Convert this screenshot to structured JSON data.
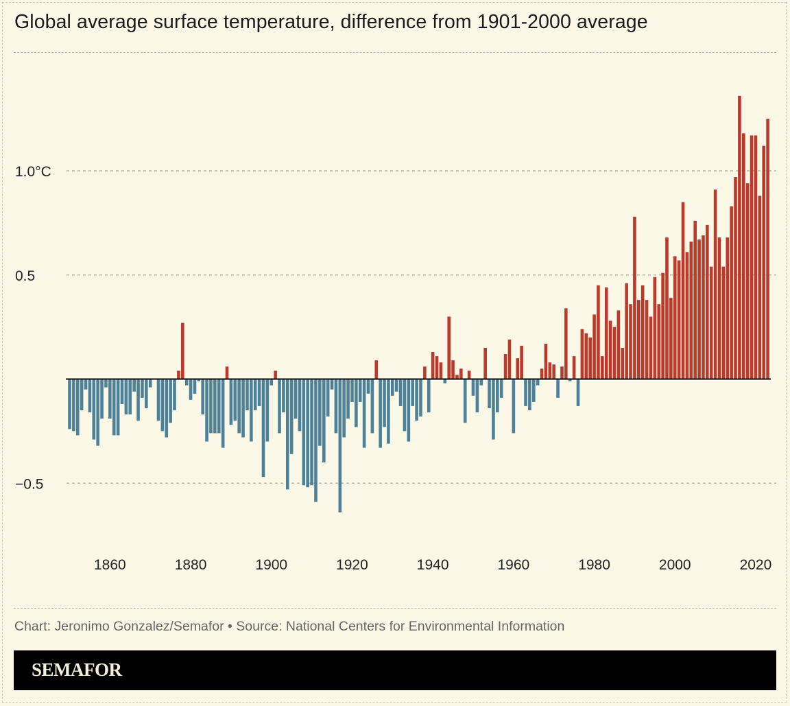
{
  "title": "Global average surface temperature, difference from 1901-2000 average",
  "source": "Chart: Jeronimo Gonzalez/Semafor • Source: National Centers for Environmental Information",
  "brand": "SEMAFOR",
  "colors": {
    "positive": "#bb3a2b",
    "negative": "#4d8199",
    "background": "#fbf8e8",
    "brand_bar": "#000000"
  },
  "chart_data": {
    "type": "bar",
    "title": "Global average surface temperature, difference from 1901-2000 average",
    "xlabel": "",
    "ylabel": "",
    "xlim": [
      1850,
      2023
    ],
    "ylim": [
      -0.7,
      1.4
    ],
    "grid": true,
    "y_ticks": [
      {
        "value": 1.0,
        "label": "1.0°C"
      },
      {
        "value": 0.5,
        "label": "0.5"
      },
      {
        "value": -0.5,
        "label": "−0.5"
      }
    ],
    "x_ticks": [
      1860,
      1880,
      1900,
      1920,
      1940,
      1960,
      1980,
      2000,
      2020
    ],
    "x": [
      1850,
      1851,
      1852,
      1853,
      1854,
      1855,
      1856,
      1857,
      1858,
      1859,
      1860,
      1861,
      1862,
      1863,
      1864,
      1865,
      1866,
      1867,
      1868,
      1869,
      1870,
      1871,
      1872,
      1873,
      1874,
      1875,
      1876,
      1877,
      1878,
      1879,
      1880,
      1881,
      1882,
      1883,
      1884,
      1885,
      1886,
      1887,
      1888,
      1889,
      1890,
      1891,
      1892,
      1893,
      1894,
      1895,
      1896,
      1897,
      1898,
      1899,
      1900,
      1901,
      1902,
      1903,
      1904,
      1905,
      1906,
      1907,
      1908,
      1909,
      1910,
      1911,
      1912,
      1913,
      1914,
      1915,
      1916,
      1917,
      1918,
      1919,
      1920,
      1921,
      1922,
      1923,
      1924,
      1925,
      1926,
      1927,
      1928,
      1929,
      1930,
      1931,
      1932,
      1933,
      1934,
      1935,
      1936,
      1937,
      1938,
      1939,
      1940,
      1941,
      1942,
      1943,
      1944,
      1945,
      1946,
      1947,
      1948,
      1949,
      1950,
      1951,
      1952,
      1953,
      1954,
      1955,
      1956,
      1957,
      1958,
      1959,
      1960,
      1961,
      1962,
      1963,
      1964,
      1965,
      1966,
      1967,
      1968,
      1969,
      1970,
      1971,
      1972,
      1973,
      1974,
      1975,
      1976,
      1977,
      1978,
      1979,
      1980,
      1981,
      1982,
      1983,
      1984,
      1985,
      1986,
      1987,
      1988,
      1989,
      1990,
      1991,
      1992,
      1993,
      1994,
      1995,
      1996,
      1997,
      1998,
      1999,
      2000,
      2001,
      2002,
      2003,
      2004,
      2005,
      2006,
      2007,
      2008,
      2009,
      2010,
      2011,
      2012,
      2013,
      2014,
      2015,
      2016,
      2017,
      2018,
      2019,
      2020,
      2021,
      2022,
      2023
    ],
    "values": [
      -0.24,
      -0.25,
      -0.27,
      -0.15,
      -0.05,
      -0.16,
      -0.29,
      -0.32,
      -0.19,
      -0.04,
      -0.19,
      -0.27,
      -0.27,
      -0.12,
      -0.17,
      -0.17,
      -0.06,
      -0.2,
      -0.09,
      -0.14,
      -0.04,
      0,
      -0.2,
      -0.25,
      -0.28,
      -0.21,
      -0.15,
      0.04,
      0.27,
      -0.03,
      -0.1,
      -0.07,
      -0.01,
      -0.17,
      -0.3,
      -0.26,
      -0.26,
      -0.26,
      -0.33,
      0.06,
      -0.22,
      -0.2,
      -0.26,
      -0.28,
      -0.15,
      -0.3,
      -0.15,
      -0.13,
      -0.47,
      -0.3,
      -0.03,
      0.04,
      -0.26,
      -0.16,
      -0.53,
      -0.36,
      -0.19,
      -0.25,
      -0.51,
      -0.52,
      -0.51,
      -0.59,
      -0.32,
      -0.4,
      -0.18,
      -0.05,
      -0.26,
      -0.64,
      -0.28,
      -0.19,
      -0.11,
      -0.23,
      -0.11,
      -0.33,
      -0.07,
      -0.26,
      0.09,
      -0.33,
      -0.23,
      -0.31,
      -0.08,
      -0.06,
      -0.13,
      -0.25,
      -0.3,
      -0.13,
      -0.2,
      -0.18,
      0.06,
      -0.16,
      0.13,
      0.11,
      0.08,
      -0.02,
      0.3,
      0.09,
      0.02,
      0.05,
      -0.21,
      0.04,
      -0.08,
      -0.16,
      -0.03,
      0.15,
      -0.14,
      -0.29,
      -0.16,
      -0.09,
      0.12,
      0.19,
      -0.26,
      0.1,
      0.16,
      -0.13,
      -0.15,
      -0.11,
      -0.03,
      0.05,
      0.17,
      0.08,
      0.07,
      -0.09,
      0.06,
      0.34,
      -0.01,
      0.11,
      -0.13,
      0.24,
      0.22,
      0.2,
      0.31,
      0.45,
      0.11,
      0.44,
      0.28,
      0.25,
      0.33,
      0.15,
      0.46,
      0.36,
      0.78,
      0.38,
      0.45,
      0.38,
      0.3,
      0.49,
      0.36,
      0.51,
      0.68,
      0.39,
      0.59,
      0.57,
      0.85,
      0.61,
      0.66,
      0.76,
      0.67,
      0.69,
      0.74,
      0.54,
      0.91,
      0.68,
      0.54,
      0.68,
      0.83,
      0.97,
      1.36,
      1.18,
      0.94,
      1.17,
      1.17,
      0.88,
      1.12,
      1.25
    ]
  }
}
